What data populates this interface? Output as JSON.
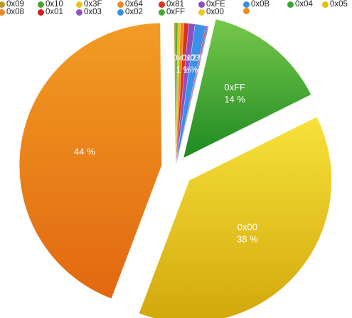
{
  "chart_data": {
    "type": "pie",
    "exploded": true,
    "legend_position": "top",
    "slices": [
      {
        "label": "0x09",
        "value": 0.2,
        "percent_label": "",
        "color": "#b99a2c"
      },
      {
        "label": "0x10",
        "value": 0.2,
        "percent_label": "",
        "color": "#4aa52e"
      },
      {
        "label": "0x3F",
        "value": 0.3,
        "percent_label": "",
        "color": "#e8c51c"
      },
      {
        "label": "0x64",
        "value": 0.4,
        "percent_label": "",
        "color": "#f08a1d"
      },
      {
        "label": "0x81",
        "value": 0.5,
        "percent_label": "",
        "color": "#d9321e"
      },
      {
        "label": "0xFE",
        "value": 0.7,
        "percent_label": "",
        "color": "#8e4fc2"
      },
      {
        "label": "0x0B",
        "value": 1.2,
        "percent_label": "",
        "color": "#3b90e8"
      },
      {
        "label": "0x04",
        "value": 0.0,
        "percent_label": "",
        "color": "#3aa830"
      },
      {
        "label": "0x05",
        "value": 0.0,
        "percent_label": "",
        "color": "#e0c000"
      },
      {
        "label": "0x08",
        "value": 0.0,
        "percent_label": "",
        "color": "#ee8a22"
      },
      {
        "label": "0x01",
        "value": 0.1,
        "percent_label": "",
        "color": "#d02020"
      },
      {
        "label": "0x03",
        "value": 0.1,
        "percent_label": "",
        "color": "#9050c0"
      },
      {
        "label": "0x02",
        "value": 0.1,
        "percent_label": "",
        "color": "#3590e0"
      },
      {
        "label": "0xFF",
        "value": 14.0,
        "percent_label": "14 %",
        "color": "#3fae2f"
      },
      {
        "label": "0x00",
        "value": 38.0,
        "percent_label": "38 %",
        "color": "#ecc81a"
      },
      {
        "label": "",
        "value": 44.0,
        "percent_label": "44 %",
        "color": "#ee8a1e"
      }
    ],
    "overlapping_small_labels": [
      "0x01",
      "0x03",
      "1 %",
      "1 %",
      "2 %"
    ]
  },
  "legend_rows": [
    [
      "0x09",
      "0x10",
      "0x3F",
      "0x64",
      "0x81",
      "0xFE",
      "0x0B",
      "0x04",
      "0x05"
    ],
    [
      "0x08",
      "0x01",
      "0x03",
      "0x02",
      "0xFF",
      "0x00",
      ""
    ]
  ]
}
